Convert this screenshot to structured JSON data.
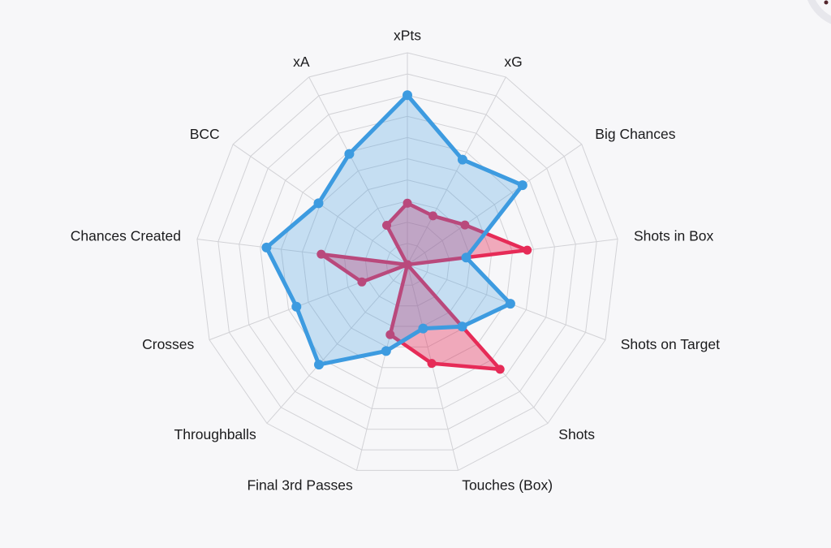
{
  "page": {
    "background_color": "#f7f7f9"
  },
  "corner_badge": {
    "arc_color": "#e7e7ec",
    "dot_color": "#53262c"
  },
  "chart_data": {
    "type": "radar",
    "title": "",
    "legend": "none",
    "grid": true,
    "rings": 10,
    "axis_min": 0,
    "axis_max": 100,
    "grid_color": "#d2d2d6",
    "label_color": "#1b1b1d",
    "categories": [
      "xPts",
      "xG",
      "Big Chances",
      "Shots in Box",
      "Shots on Target",
      "Shots",
      "Touches (Box)",
      "Final 3rd Passes",
      "Throughballs",
      "Crosses",
      "Chances Created",
      "BCC",
      "xA"
    ],
    "series": [
      {
        "name": "red-series",
        "line_color": "#e62b57",
        "fill_color": "rgba(230,43,87,0.38)",
        "values": [
          29,
          26,
          33,
          57,
          0,
          66,
          48,
          34,
          0,
          23,
          41,
          0,
          21
        ]
      },
      {
        "name": "blue-series",
        "line_color": "#3d9be0",
        "fill_color": "rgba(61,155,224,0.27)",
        "values": [
          80,
          56,
          66,
          28,
          52,
          39,
          31,
          42,
          63,
          56,
          67,
          51,
          59
        ]
      }
    ]
  }
}
